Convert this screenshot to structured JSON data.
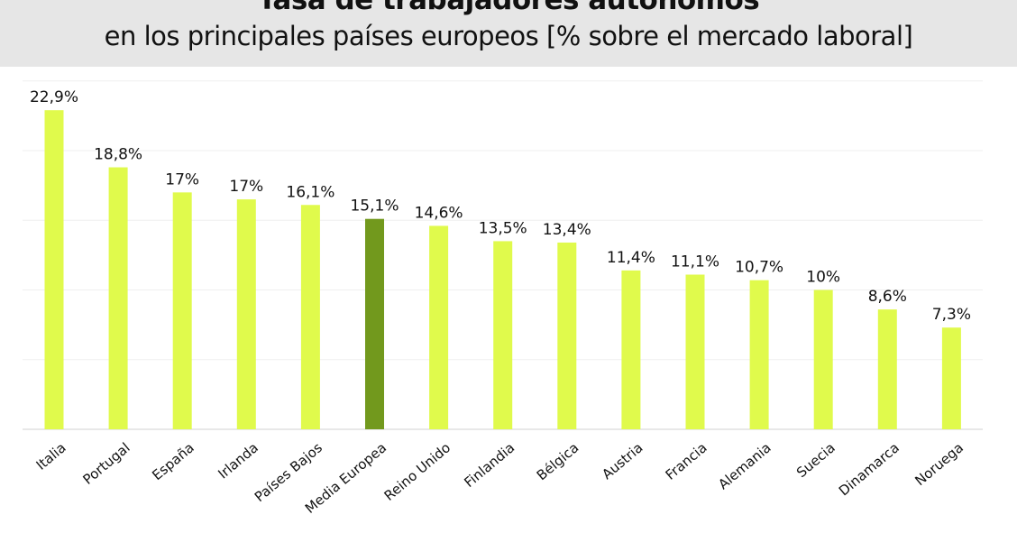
{
  "title": "Tasa de trabajadores autónomos",
  "subtitle": "en los principales países europeos [% sobre el mercado laboral]",
  "colors": {
    "bar": "#e0fa4c",
    "highlight": "#72991d",
    "grid": "#efefef",
    "axis": "#d0d0d0",
    "header_bg": "#e6e6e6"
  },
  "chart_data": {
    "type": "bar",
    "categories": [
      "Italia",
      "Portugal",
      "España",
      "Irlanda",
      "Países Bajos",
      "Media Europea",
      "Reino Unido",
      "Finlandia",
      "Bélgica",
      "Austria",
      "Francia",
      "Alemania",
      "Suecia",
      "Dinamarca",
      "Noruega"
    ],
    "values": [
      22.9,
      18.8,
      17.0,
      16.5,
      16.1,
      15.1,
      14.6,
      13.5,
      13.4,
      11.4,
      11.1,
      10.7,
      10.0,
      8.6,
      7.3
    ],
    "data_labels": [
      "22,9%",
      "18,8%",
      "17%",
      "17%",
      "16,1%",
      "15,1%",
      "14,6%",
      "13,5%",
      "13,4%",
      "11,4%",
      "11,1%",
      "10,7%",
      "10%",
      "8,6%",
      "7,3%"
    ],
    "highlight_category": "Media Europea",
    "ylim": [
      0,
      25
    ],
    "grid": true,
    "xlabel": "",
    "ylabel": ""
  }
}
